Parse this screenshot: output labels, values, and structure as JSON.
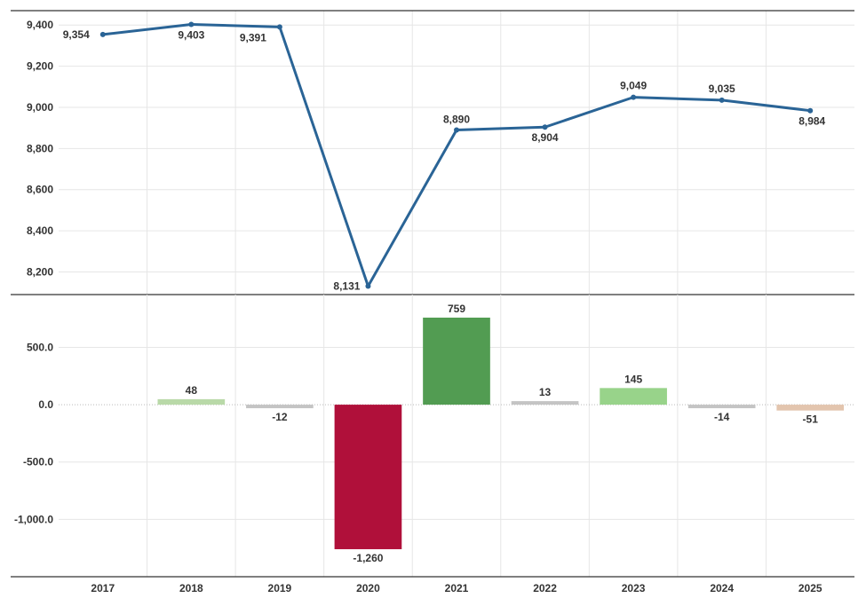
{
  "chart_data": [
    {
      "type": "line",
      "x": [
        "2017",
        "2018",
        "2019",
        "2020",
        "2021",
        "2022",
        "2023",
        "2024",
        "2025"
      ],
      "values": [
        9354,
        9403,
        9391,
        8131,
        8890,
        8904,
        9049,
        9035,
        8984
      ],
      "data_labels": [
        "9,354",
        "9,403",
        "9,391",
        "8,131",
        "8,890",
        "8,904",
        "9,049",
        "9,035",
        "8,984"
      ],
      "y_ticks": [
        8200,
        8400,
        8600,
        8800,
        9000,
        9200,
        9400
      ],
      "y_tick_labels": [
        "8,200",
        "8,400",
        "8,600",
        "8,800",
        "9,000",
        "9,200",
        "9,400"
      ],
      "ylim": [
        8090,
        9470
      ],
      "color": "#2a6496",
      "grid": true
    },
    {
      "type": "bar",
      "categories": [
        "2018",
        "2019",
        "2020",
        "2021",
        "2022",
        "2023",
        "2024",
        "2025"
      ],
      "values": [
        48,
        -12,
        -1260,
        759,
        13,
        145,
        -14,
        -51
      ],
      "data_labels": [
        "48",
        "-12",
        "-1,260",
        "759",
        "13",
        "145",
        "-14",
        "-51"
      ],
      "colors": [
        "#b9d9a8",
        "#c4c4c4",
        "#b0103a",
        "#529c52",
        "#c4c4c4",
        "#98d38a",
        "#c4c4c4",
        "#e3c5ae"
      ],
      "y_ticks": [
        -1000,
        -500,
        0,
        500
      ],
      "y_tick_labels": [
        "-1,000.0",
        "-500.0",
        "0.0",
        "500.0"
      ],
      "ylim": [
        -1500,
        960
      ],
      "grid": true
    }
  ],
  "x_axis_labels": [
    "2017",
    "2018",
    "2019",
    "2020",
    "2021",
    "2022",
    "2023",
    "2024",
    "2025"
  ]
}
